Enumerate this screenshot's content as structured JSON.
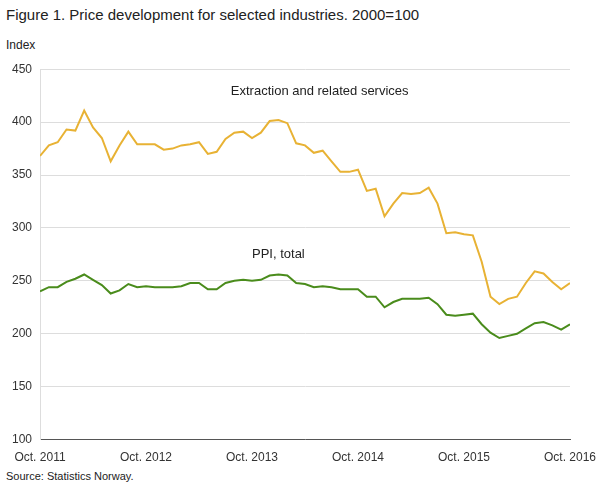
{
  "chart_data": {
    "type": "line",
    "title": "Figure 1. Price development for selected industries. 2000=100",
    "y_label": "Index",
    "source": "Source: Statistics Norway.",
    "categories": [
      "Oct. 2011",
      null,
      null,
      null,
      null,
      null,
      null,
      null,
      null,
      null,
      null,
      null,
      "Oct. 2012",
      null,
      null,
      null,
      null,
      null,
      null,
      null,
      null,
      null,
      null,
      null,
      "Oct. 2013",
      null,
      null,
      null,
      null,
      null,
      null,
      null,
      null,
      null,
      null,
      null,
      "Oct. 2014",
      null,
      null,
      null,
      null,
      null,
      null,
      null,
      null,
      null,
      null,
      null,
      "Oct. 2015",
      null,
      null,
      null,
      null,
      null,
      null,
      null,
      null,
      null,
      null,
      null,
      "Oct. 2016"
    ],
    "series": [
      {
        "name": "Extraction and related services",
        "color": "#e8b234",
        "values": [
          368,
          378,
          381,
          393,
          392,
          411,
          395,
          385,
          363,
          378,
          391,
          379,
          379,
          379,
          374,
          375,
          378,
          379,
          381,
          370,
          372,
          384,
          390,
          391,
          385,
          390,
          401,
          402,
          399,
          380,
          378,
          371,
          373,
          363,
          353,
          353,
          355,
          335,
          337,
          311,
          323,
          333,
          332,
          333,
          338,
          323,
          295,
          296,
          294,
          293,
          268,
          235,
          228,
          233,
          235,
          248,
          259,
          257,
          249,
          242,
          248
        ]
      },
      {
        "name": "PPI, total",
        "color": "#4a8c1c",
        "values": [
          240,
          244,
          244,
          249,
          252,
          256,
          251,
          246,
          238,
          241,
          247,
          244,
          245,
          244,
          244,
          244,
          245,
          248,
          248,
          242,
          242,
          248,
          250,
          251,
          250,
          251,
          255,
          256,
          255,
          248,
          247,
          244,
          245,
          244,
          242,
          242,
          242,
          235,
          235,
          225,
          230,
          233,
          233,
          233,
          234,
          228,
          218,
          217,
          218,
          219,
          209,
          201,
          196,
          198,
          200,
          205,
          210,
          211,
          208,
          204,
          209
        ]
      }
    ],
    "ylim": [
      100,
      450
    ],
    "yticks": [
      100,
      150,
      200,
      250,
      300,
      350,
      400,
      450
    ],
    "grid": true
  }
}
